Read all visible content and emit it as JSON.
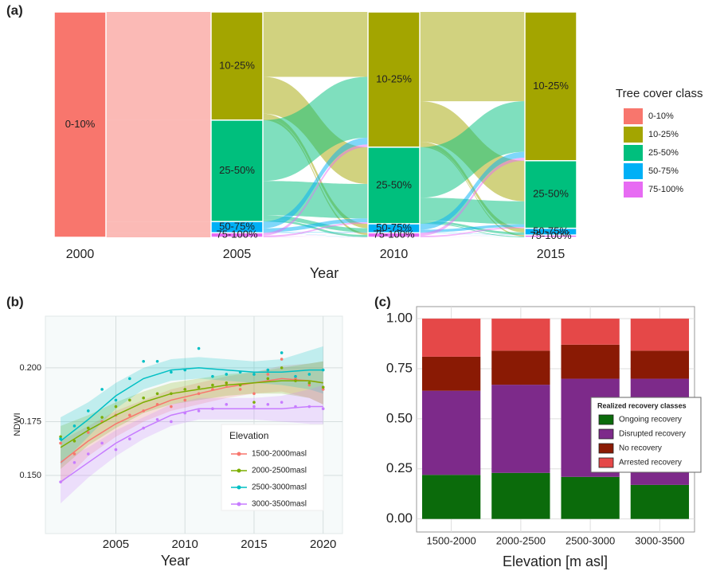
{
  "chart_data": [
    {
      "type": "alluvial",
      "panel_label": "(a)",
      "xlabel": "Year",
      "legend_title": "Tree cover class",
      "categories": [
        "2000",
        "2005",
        "2010",
        "2015"
      ],
      "series": [
        {
          "name": "0-10%",
          "color": "#f8766d",
          "values": [
            100,
            0,
            0,
            0
          ]
        },
        {
          "name": "10-25%",
          "color": "#a3a500",
          "values": [
            0,
            48,
            60,
            66
          ]
        },
        {
          "name": "25-50%",
          "color": "#00bf7d",
          "values": [
            0,
            45,
            34,
            30
          ]
        },
        {
          "name": "50-75%",
          "color": "#00b0f6",
          "values": [
            0,
            5,
            4,
            3
          ]
        },
        {
          "name": "75-100%",
          "color": "#e76bf3",
          "values": [
            0,
            2,
            2,
            1
          ]
        }
      ]
    },
    {
      "type": "line",
      "panel_label": "(b)",
      "xlabel": "Year",
      "ylabel": "NDWI",
      "legend_title": "Elevation",
      "x": [
        2001,
        2002,
        2003,
        2004,
        2005,
        2006,
        2007,
        2008,
        2009,
        2010,
        2011,
        2012,
        2013,
        2014,
        2015,
        2016,
        2017,
        2018,
        2019,
        2020
      ],
      "fit_x": [
        2001,
        2003,
        2005,
        2007,
        2009,
        2011,
        2013,
        2015,
        2017,
        2019,
        2020
      ],
      "xlim": [
        1999.9,
        2021.4
      ],
      "xticks": [
        2005,
        2010,
        2015,
        2020
      ],
      "ylim": [
        0.123,
        0.224
      ],
      "yticks": [
        {
          "value": 0.15,
          "label": "0.150"
        },
        0.175,
        {
          "value": 0.2,
          "label": "0.200"
        }
      ],
      "grid": true,
      "series": [
        {
          "name": "1500-2000masl",
          "color": "#f8766d",
          "values": [
            0.165,
            0.16,
            0.17,
            0.175,
            0.178,
            0.178,
            0.18,
            0.183,
            0.182,
            0.185,
            0.188,
            0.19,
            0.192,
            0.19,
            0.188,
            0.197,
            0.204,
            0.195,
            0.192,
            0.19
          ],
          "fit": [
            0.156,
            0.166,
            0.174,
            0.18,
            0.185,
            0.188,
            0.191,
            0.193,
            0.195,
            0.194,
            0.193
          ],
          "ci": [
            0.01,
            0.007,
            0.006,
            0.005,
            0.005,
            0.005,
            0.005,
            0.005,
            0.006,
            0.008,
            0.01
          ]
        },
        {
          "name": "2000-2500masl",
          "color": "#7cae00",
          "values": [
            0.168,
            0.166,
            0.172,
            0.177,
            0.182,
            0.185,
            0.186,
            0.188,
            0.188,
            0.19,
            0.191,
            0.192,
            0.193,
            0.192,
            0.184,
            0.195,
            0.2,
            0.194,
            0.193,
            0.191
          ],
          "fit": [
            0.163,
            0.171,
            0.178,
            0.184,
            0.188,
            0.19,
            0.192,
            0.193,
            0.194,
            0.194,
            0.193
          ],
          "ci": [
            0.01,
            0.007,
            0.006,
            0.005,
            0.005,
            0.005,
            0.005,
            0.005,
            0.006,
            0.008,
            0.01
          ]
        },
        {
          "name": "2500-3000masl",
          "color": "#00bfc4",
          "values": [
            0.167,
            0.173,
            0.18,
            0.19,
            0.185,
            0.195,
            0.203,
            0.203,
            0.198,
            0.199,
            0.209,
            0.196,
            0.197,
            0.198,
            0.197,
            0.199,
            0.207,
            0.196,
            0.197,
            0.199
          ],
          "fit": [
            0.166,
            0.176,
            0.187,
            0.195,
            0.199,
            0.2,
            0.199,
            0.198,
            0.198,
            0.199,
            0.199
          ],
          "ci": [
            0.011,
            0.008,
            0.006,
            0.005,
            0.005,
            0.005,
            0.005,
            0.005,
            0.006,
            0.009,
            0.011
          ]
        },
        {
          "name": "3000-3500masl",
          "color": "#c77cff",
          "values": [
            0.147,
            0.156,
            0.16,
            0.165,
            0.162,
            0.167,
            0.172,
            0.176,
            0.175,
            0.179,
            0.18,
            0.181,
            0.183,
            0.173,
            0.182,
            0.183,
            0.184,
            0.182,
            0.182,
            0.181
          ],
          "fit": [
            0.147,
            0.156,
            0.165,
            0.172,
            0.178,
            0.181,
            0.181,
            0.181,
            0.181,
            0.182,
            0.182
          ],
          "ci": [
            0.01,
            0.007,
            0.006,
            0.005,
            0.005,
            0.005,
            0.005,
            0.005,
            0.006,
            0.008,
            0.01
          ]
        }
      ]
    },
    {
      "type": "stacked_bar",
      "panel_label": "(c)",
      "xlabel": "Elevation [m asl]",
      "legend_title": "Realized recovery classes",
      "categories": [
        "1500-2000",
        "2000-2500",
        "2500-3000",
        "3000-3500"
      ],
      "ylim": [
        -0.065,
        1.06
      ],
      "yticks": [
        {
          "value": 0,
          "label": "0.00"
        },
        0.25,
        {
          "value": 0.5,
          "label": "0.50"
        },
        0.75,
        {
          "value": 1,
          "label": "1.00"
        }
      ],
      "grid": true,
      "series": [
        {
          "name": "Ongoing recovery",
          "color": "#0b6b0b",
          "values": [
            0.22,
            0.23,
            0.21,
            0.17
          ]
        },
        {
          "name": "Disrupted recovery",
          "color": "#7d2a8a",
          "values": [
            0.42,
            0.44,
            0.49,
            0.53
          ]
        },
        {
          "name": "No recovery",
          "color": "#8a1a04",
          "values": [
            0.17,
            0.17,
            0.17,
            0.14
          ]
        },
        {
          "name": "Arrested recovery",
          "color": "#e54848",
          "values": [
            0.19,
            0.16,
            0.13,
            0.16
          ]
        }
      ]
    }
  ]
}
